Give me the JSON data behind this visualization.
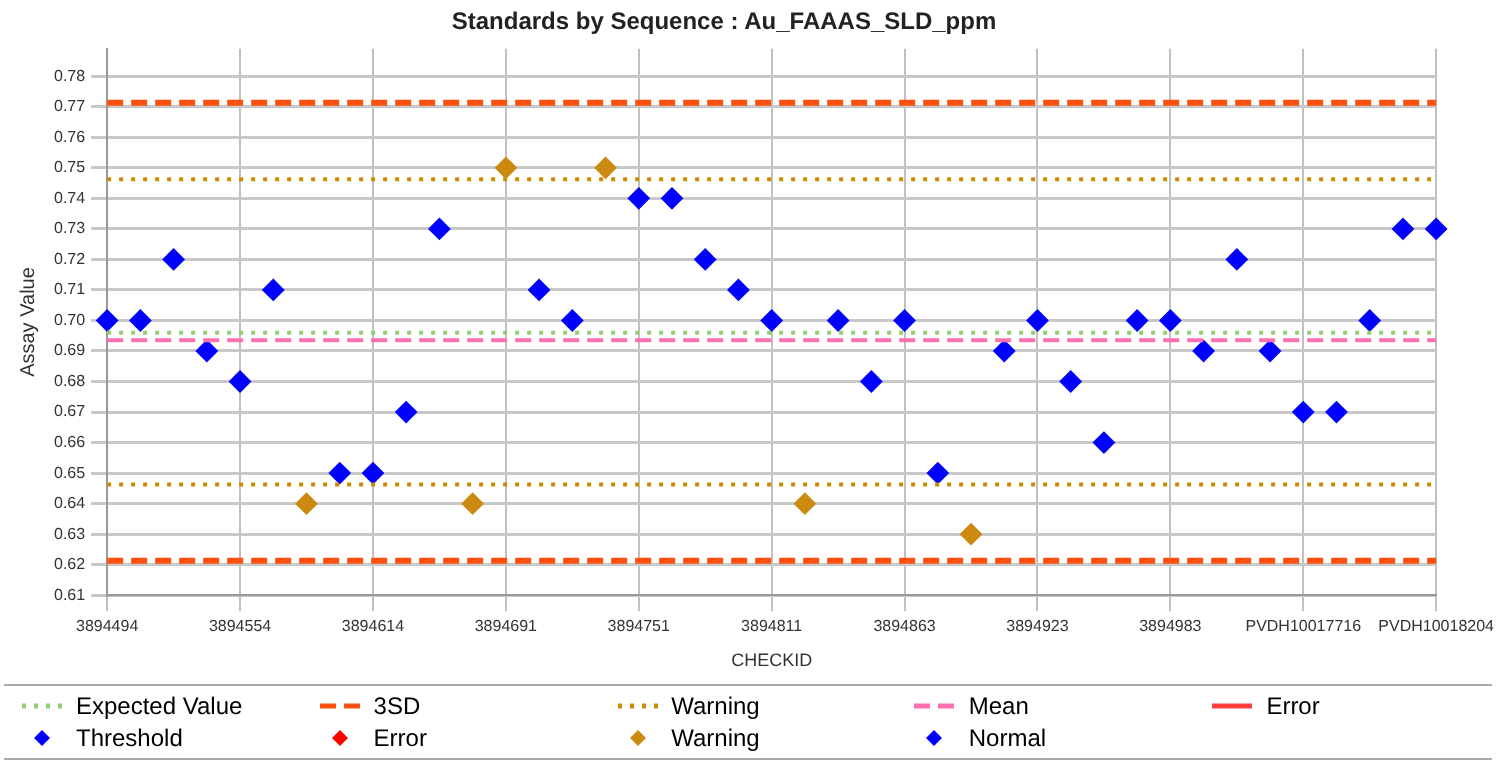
{
  "chart_data": {
    "type": "scatter",
    "title": "Standards by Sequence : Au_FAAAS_SLD_ppm",
    "xlabel": "CHECKID",
    "ylabel": "Assay Value",
    "categories": [
      "3894494",
      null,
      null,
      null,
      "3894554",
      null,
      null,
      null,
      "3894614",
      null,
      null,
      null,
      "3894691",
      null,
      null,
      null,
      "3894751",
      null,
      null,
      null,
      "3894811",
      null,
      null,
      null,
      "3894863",
      null,
      null,
      null,
      "3894923",
      null,
      null,
      null,
      "3894983",
      null,
      null,
      null,
      "PVDH10017716",
      null,
      null,
      null,
      "PVDH10018204"
    ],
    "series": [
      {
        "name": "Error",
        "type": "line",
        "color": "#ff4040",
        "line_style": "solid",
        "values": [
          null,
          null,
          null,
          null,
          null,
          null,
          null,
          null,
          null,
          null,
          null,
          null,
          null,
          null,
          null,
          null,
          null,
          null,
          null,
          null,
          null,
          null,
          null,
          null,
          null,
          null,
          null,
          null,
          null,
          null,
          null,
          null,
          null,
          null,
          null,
          null,
          null,
          null,
          null,
          null,
          null
        ]
      },
      {
        "name": "Threshold",
        "color": "#0000ff",
        "values": [
          null,
          null,
          null,
          null,
          null,
          null,
          null,
          null,
          null,
          null,
          null,
          null,
          null,
          null,
          null,
          null,
          null,
          null,
          null,
          null,
          null,
          null,
          null,
          null,
          null,
          null,
          null,
          null,
          null,
          null,
          null,
          null,
          null,
          null,
          null,
          null,
          null,
          null,
          null,
          null,
          null
        ]
      },
      {
        "name": "Error",
        "color": "#ff0000",
        "values": [
          null,
          null,
          null,
          null,
          null,
          null,
          null,
          null,
          null,
          null,
          null,
          null,
          null,
          null,
          null,
          null,
          null,
          null,
          null,
          null,
          null,
          null,
          null,
          null,
          null,
          null,
          null,
          null,
          null,
          null,
          null,
          null,
          null,
          null,
          null,
          null,
          null,
          null,
          null,
          null,
          null
        ]
      },
      {
        "name": "Warning",
        "color": "#cc8a10",
        "values": [
          null,
          null,
          null,
          null,
          null,
          null,
          0.64,
          null,
          null,
          null,
          null,
          0.64,
          0.75,
          null,
          null,
          0.75,
          null,
          null,
          null,
          null,
          null,
          0.64,
          null,
          null,
          null,
          null,
          0.63,
          null,
          null,
          null,
          null,
          null,
          null,
          null,
          null,
          null,
          null,
          null,
          null,
          null,
          null
        ]
      },
      {
        "name": "Normal",
        "color": "#0000ff",
        "values": [
          0.7,
          0.7,
          0.72,
          0.69,
          0.68,
          0.71,
          null,
          0.65,
          0.65,
          0.67,
          0.73,
          null,
          null,
          0.71,
          0.7,
          null,
          0.74,
          0.74,
          0.72,
          0.71,
          0.7,
          null,
          0.7,
          0.68,
          0.7,
          0.65,
          null,
          0.69,
          0.7,
          0.68,
          0.66,
          0.7,
          0.7,
          0.69,
          0.72,
          0.69,
          0.67,
          0.67,
          0.7,
          0.73,
          0.73
        ]
      }
    ],
    "ref_lines": [
      {
        "axis": "y",
        "value": 0.696,
        "label": "Expected Value",
        "color": "#90d070",
        "line_style": "dotted"
      },
      {
        "axis": "y",
        "value": 0.7713,
        "label": "3SD",
        "color": "#ff5010",
        "line_style": "dashed"
      },
      {
        "axis": "y",
        "value": 0.6213,
        "color": "#ff5010",
        "line_style": "dashed"
      },
      {
        "axis": "y",
        "value": 0.7463,
        "label": "Warning",
        "color": "#d08a00",
        "line_style": "dotted"
      },
      {
        "axis": "y",
        "value": 0.6463,
        "color": "#d08a00",
        "line_style": "dotted"
      },
      {
        "axis": "y",
        "value": 0.6935,
        "label": "Mean",
        "color": "#ff70b0",
        "line_style": "dashed"
      }
    ],
    "ylim": [
      0.61,
      0.789
    ],
    "yticks": [
      0.61,
      0.62,
      0.63,
      0.64,
      0.65,
      0.66,
      0.67,
      0.68,
      0.69,
      {
        "value": 0.7,
        "label": "0.70"
      },
      0.71,
      0.72,
      0.73,
      0.74,
      0.75,
      0.76,
      0.77,
      0.78
    ],
    "grid": true,
    "marker": "diamond",
    "legend": "bottom"
  }
}
